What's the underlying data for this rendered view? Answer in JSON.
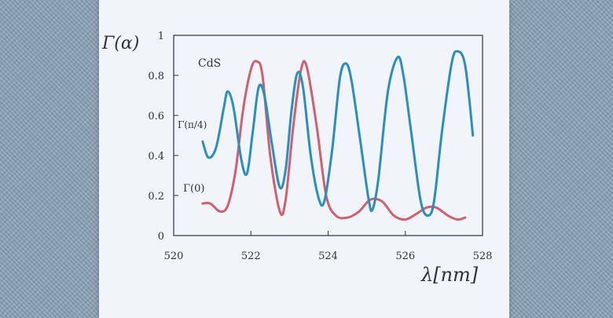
{
  "chart_data": {
    "type": "line",
    "ylabel": "Γ(α)",
    "xlabel": "λ[nm]",
    "xlim": [
      520,
      528
    ],
    "ylim": [
      0,
      1
    ],
    "x_ticks": [
      "520",
      "522",
      "524",
      "526",
      "528"
    ],
    "y_ticks": [
      "0",
      "0.2",
      "0.4",
      "0.6",
      "0.8",
      "1"
    ],
    "annotation": "CdS",
    "grid": false,
    "series": [
      {
        "name": "Γ(π/4)",
        "color": "#2a8fc0",
        "x": [
          520.75,
          520.9,
          521.1,
          521.3,
          521.4,
          521.55,
          521.75,
          521.9,
          522.05,
          522.2,
          522.35,
          522.55,
          522.75,
          522.9,
          523.05,
          523.2,
          523.35,
          523.55,
          523.75,
          523.9,
          524.1,
          524.3,
          524.45,
          524.6,
          524.85,
          525.05,
          525.15,
          525.3,
          525.55,
          525.8,
          525.95,
          526.15,
          526.4,
          526.6,
          526.75,
          526.95,
          527.2,
          527.35,
          527.55,
          527.75
        ],
        "y": [
          0.47,
          0.39,
          0.44,
          0.64,
          0.72,
          0.64,
          0.38,
          0.31,
          0.52,
          0.74,
          0.7,
          0.45,
          0.24,
          0.33,
          0.62,
          0.81,
          0.74,
          0.4,
          0.19,
          0.17,
          0.42,
          0.78,
          0.86,
          0.78,
          0.45,
          0.18,
          0.13,
          0.28,
          0.72,
          0.89,
          0.8,
          0.52,
          0.17,
          0.1,
          0.18,
          0.52,
          0.86,
          0.92,
          0.85,
          0.5
        ]
      },
      {
        "name": "Γ(0)",
        "color": "#d06070",
        "x": [
          520.75,
          520.95,
          521.2,
          521.4,
          521.6,
          521.8,
          522.0,
          522.15,
          522.3,
          522.5,
          522.75,
          522.9,
          523.1,
          523.3,
          523.45,
          523.7,
          523.95,
          524.2,
          524.5,
          524.8,
          525.1,
          525.4,
          525.7,
          526.0,
          526.3,
          526.55,
          526.8,
          527.1,
          527.35,
          527.55
        ],
        "y": [
          0.16,
          0.16,
          0.12,
          0.15,
          0.32,
          0.63,
          0.83,
          0.87,
          0.8,
          0.4,
          0.12,
          0.18,
          0.55,
          0.83,
          0.84,
          0.55,
          0.2,
          0.1,
          0.09,
          0.12,
          0.18,
          0.17,
          0.1,
          0.08,
          0.11,
          0.14,
          0.14,
          0.1,
          0.08,
          0.09
        ]
      }
    ]
  }
}
